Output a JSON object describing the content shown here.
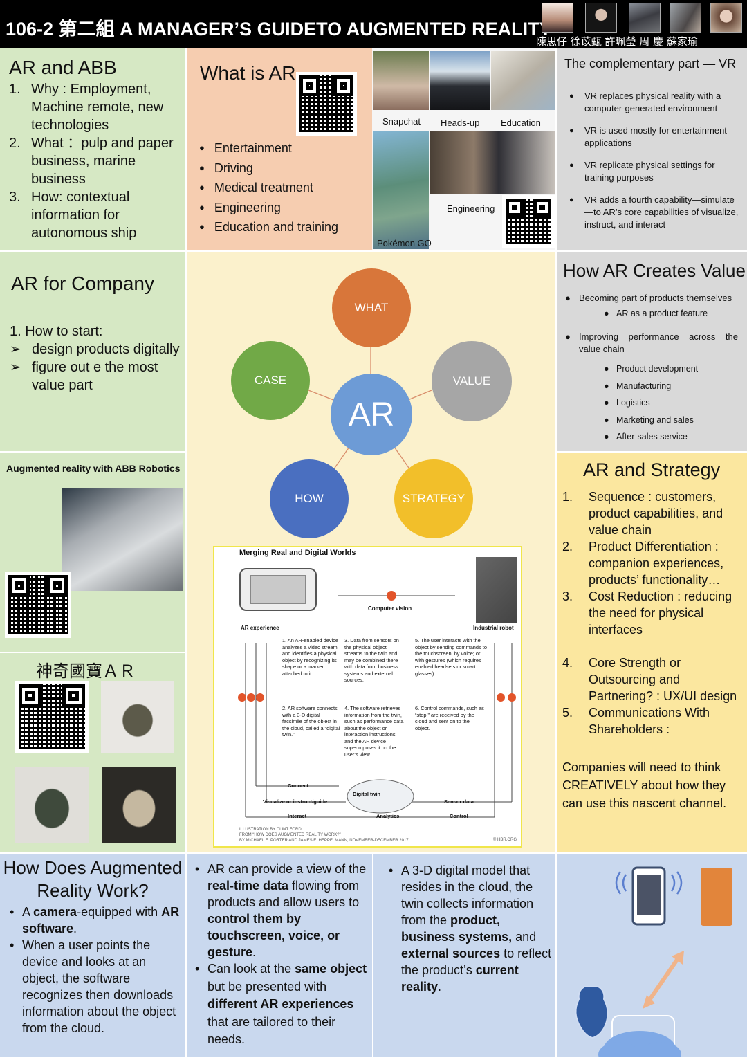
{
  "header": {
    "title": "106-2 第二組 A MANAGER’S GUIDETO AUGMENTED REALITY",
    "members": "陳思仔 徐苡甄 許珮瑩 周 慶 蘇家瑜"
  },
  "ar_abb": {
    "heading": "AR and ABB",
    "items": [
      {
        "n": "1.",
        "text": "Why : Employment, Machine remote, new technologies"
      },
      {
        "n": "2.",
        "text": "What ：pulp and paper business, marine business"
      },
      {
        "n": "3.",
        "text": "How: contextual information for autonomous ship"
      }
    ]
  },
  "what_is_ar": {
    "heading": "What is AR",
    "items": [
      "Entertainment",
      "Driving",
      "Medical treatment",
      "Engineering",
      "Education and training"
    ]
  },
  "photos": {
    "labels": [
      "Snapchat",
      "Heads-up",
      "Education",
      "Engineering",
      "Pokémon GO"
    ]
  },
  "vr": {
    "heading": "The complementary part — VR",
    "items": [
      "VR replaces physical reality with a computer-generated environment",
      "VR is used mostly for entertainment applications",
      "VR replicate physical settings for training purposes",
      "VR adds a fourth capability—simulate—to AR’s core capabilities of visualize, instruct, and interact"
    ]
  },
  "company": {
    "heading": "AR for Company",
    "start": "1.   How to start:",
    "items": [
      "design products digitally",
      "figure out e the most value part"
    ]
  },
  "abb_robotics": {
    "caption": "Augmented reality with ABB Robotics"
  },
  "diagram": {
    "center": "AR",
    "nodes": {
      "what": "WHAT",
      "value": "VALUE",
      "strategy": "STRATEGY",
      "how": "HOW",
      "case": "CASE"
    },
    "colors": {
      "what": "#d8763a",
      "value": "#a6a6a6",
      "strategy": "#f2bf2a",
      "how": "#4a6fc0",
      "case": "#71a947",
      "center": "#6d9bd6"
    }
  },
  "hbr": {
    "title": "Merging Real and Digital Worlds",
    "computer_vision": "Computer vision",
    "ar_experience": "AR experience",
    "industrial_robot": "Industrial robot",
    "steps": [
      "1. An AR-enabled device analyzes a video stream and identifies a physical object by recognizing its shape or a marker attached to it.",
      "2. AR software connects with a 3-D digital facsimile of the object in the cloud, called a “digital twin.”",
      "3. Data from sensors on the physical object streams to the twin and may be combined there with data from business systems and external sources.",
      "4. The software retrieves information from the twin, such as performance data about the object or interaction instructions, and the AR device superimposes it on the user’s view.",
      "5. The user interacts with the object by sending commands to the touchscreen; by voice; or with gestures (which requires enabled headsets or smart glasses).",
      "6. Control commands, such as “stop,” are received by the cloud and sent on to the object."
    ],
    "connect": "Connect",
    "visualize": "Visualize or instruct/guide",
    "interact": "Interact",
    "digital_twin": "Digital twin",
    "analytics": "Analytics",
    "sensor": "Sensor data",
    "control": "Control",
    "credit1": "ILLUSTRATION BY CLINT FORD",
    "credit2": "FROM “HOW DOES AUGMENTED REALITY WORK?”",
    "credit3": "BY MICHAEL E. PORTER AND JAMES E. HEPPELMANN, NOVEMBER-DECEMBER 2017",
    "credit4": "© HBR.ORG"
  },
  "value": {
    "heading": "How AR Creates Value",
    "b1": "Becoming part of products themselves",
    "s1": "AR as a product feature",
    "b2": "Improving performance across the value chain",
    "s2": [
      "Product development",
      "Manufacturing",
      "Logistics",
      "Marketing and sales",
      "After-sales service"
    ]
  },
  "strategy": {
    "heading": "AR and Strategy",
    "items": [
      {
        "n": "1.",
        "text": "Sequence : customers, product capabilities, and value chain"
      },
      {
        "n": "2.",
        "text": "Product Differentiation : companion experiences, products’ functionality…"
      },
      {
        "n": "3.",
        "text": "Cost Reduction : reducing the need for physical interfaces"
      },
      {
        "n": "4.",
        "text": "Core Strength or Outsourcing and Partnering? :  UX/UI design"
      },
      {
        "n": "5.",
        "text": "Communications With Shareholders :"
      }
    ],
    "closing": "Companies will need to think CREATIVELY about how they can use this nascent channel."
  },
  "treasure": {
    "heading": "神奇國寶ＡＲ"
  },
  "how_work": {
    "heading": "How Does Augmented Reality Work?",
    "b1_pre": "A ",
    "b1_bold1": "camera",
    "b1_mid": "-equipped with ",
    "b1_bold2": "AR software",
    "b1_post": ".",
    "b2": "When a user points the device and looks at an object, the software recognizes then downloads information about the object from the cloud."
  },
  "col2": {
    "p1a": "AR can provide a view of the ",
    "p1b": "real-time data",
    "p1c": " flowing from products and allow users to ",
    "p1d": "control them by touchscreen, voice, or gesture",
    "p1e": ".",
    "p2a": "Can look at the ",
    "p2b": "same object",
    "p2c": " but be presented with ",
    "p2d": "different AR experiences",
    "p2e": " that are tailored to their needs."
  },
  "col3": {
    "a": "A 3-D digital model that resides in the cloud, the twin collects information from the ",
    "b": "product, business systems,",
    "c": " and ",
    "d": "external sources",
    "e": " to reflect the product’s ",
    "f": "current reality",
    "g": "."
  }
}
